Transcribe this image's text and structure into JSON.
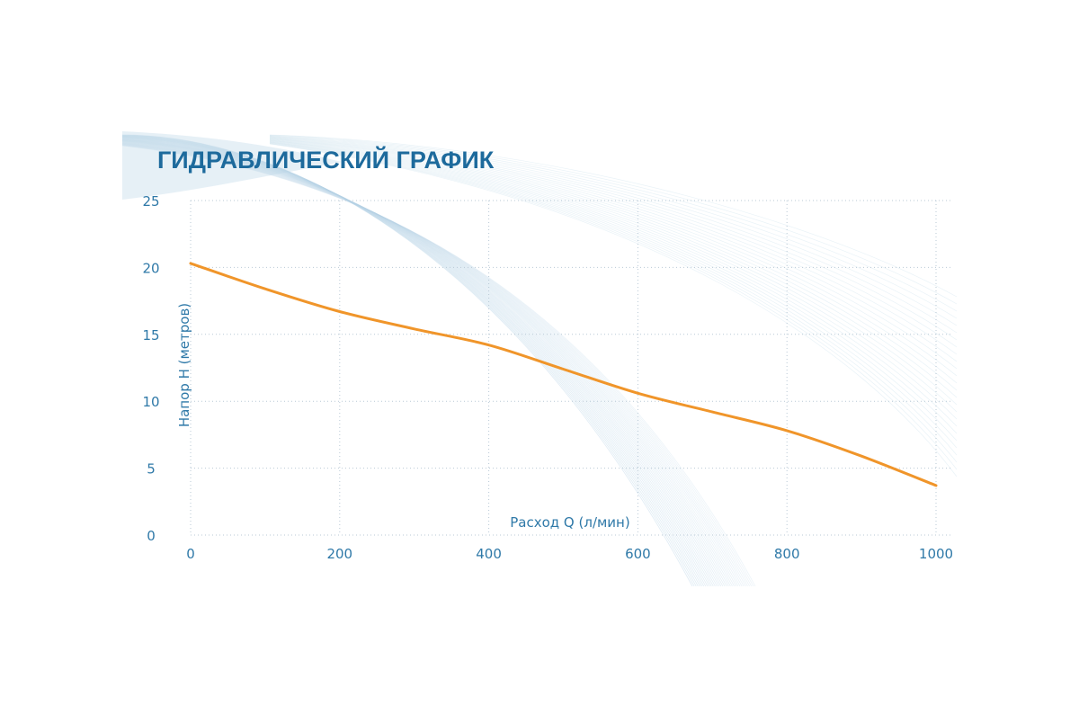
{
  "chart_data": {
    "type": "line",
    "title": "ГИДРАВЛИЧЕСКИЙ ГРАФИК",
    "xlabel": "Расход Q (л/мин)",
    "ylabel": "Напор Н (метров)",
    "xlim": [
      0,
      1000
    ],
    "ylim": [
      0,
      25
    ],
    "xticks": [
      "0",
      "200",
      "400",
      "600",
      "800",
      "1000"
    ],
    "yticks": [
      "0",
      "5",
      "10",
      "15",
      "20",
      "25"
    ],
    "grid": true,
    "series": [
      {
        "x": [
          0,
          100,
          200,
          300,
          400,
          500,
          600,
          700,
          800,
          900,
          1000
        ],
        "y": [
          20.3,
          18.4,
          16.7,
          15.4,
          14.2,
          12.4,
          10.6,
          9.2,
          7.8,
          5.9,
          3.7
        ],
        "color": "#f0952a"
      }
    ]
  },
  "colors": {
    "title": "#1d6a9c",
    "ticks": "#2f79a8",
    "grid": "#b9c9d6",
    "curve": "#f0952a",
    "decor": "#b7d3e6"
  }
}
